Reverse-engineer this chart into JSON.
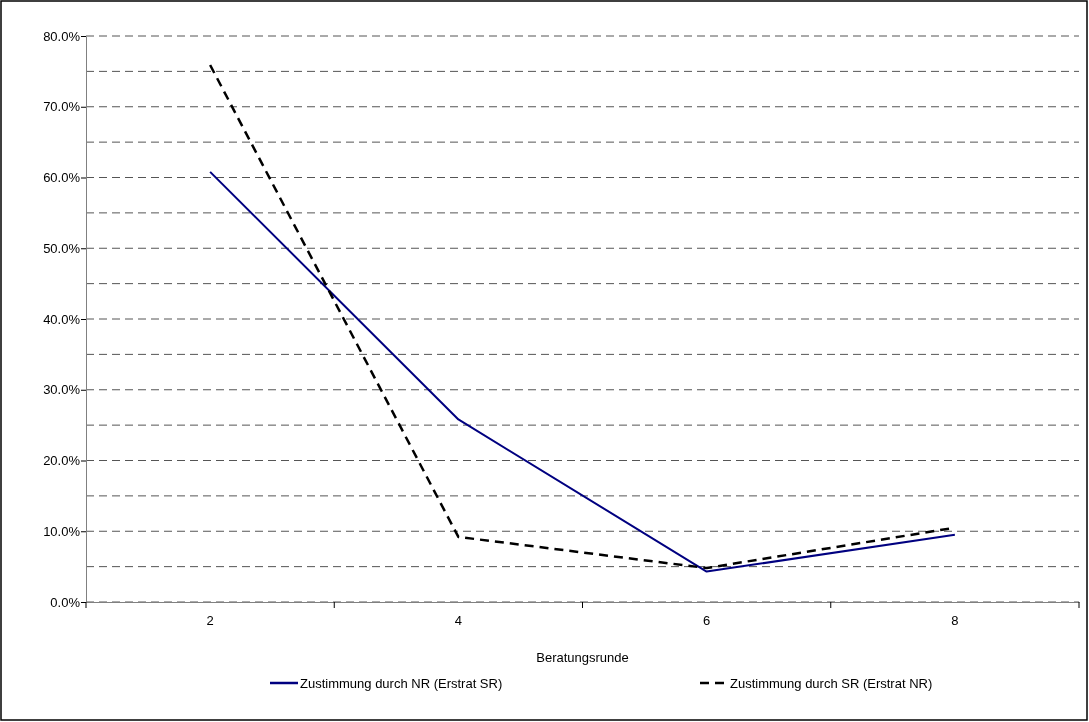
{
  "chart_data": {
    "type": "line",
    "xlabel": "Beratungsrunde",
    "categories": [
      "2",
      "4",
      "6",
      "8"
    ],
    "series": [
      {
        "name": "Zustimmung durch NR (Erstrat SR)",
        "color": "#000080",
        "values": [
          60.8,
          25.8,
          4.3,
          9.5
        ],
        "line_style": "solid"
      },
      {
        "name": "Zustimmung durch SR (Erstrat NR)",
        "color": "#000000",
        "values": [
          75.9,
          9.2,
          4.8,
          10.5
        ],
        "line_style": "dashed"
      }
    ],
    "ylim": [
      0,
      80
    ],
    "yticks": [
      {
        "value": 0,
        "label": "0.0%"
      },
      {
        "value": 5,
        "label": null
      },
      {
        "value": 10,
        "label": "10.0%"
      },
      {
        "value": 15,
        "label": null
      },
      {
        "value": 20,
        "label": "20.0%"
      },
      {
        "value": 25,
        "label": null
      },
      {
        "value": 30,
        "label": "30.0%"
      },
      {
        "value": 35,
        "label": null
      },
      {
        "value": 40,
        "label": "40.0%"
      },
      {
        "value": 45,
        "label": null
      },
      {
        "value": 50,
        "label": "50.0%"
      },
      {
        "value": 55,
        "label": null
      },
      {
        "value": 60,
        "label": "60.0%"
      },
      {
        "value": 65,
        "label": null
      },
      {
        "value": 70,
        "label": "70.0%"
      },
      {
        "value": 75,
        "label": null
      },
      {
        "value": 80,
        "label": "80.0%"
      }
    ],
    "grid": "y",
    "legend": "bottom",
    "marker": "none"
  }
}
